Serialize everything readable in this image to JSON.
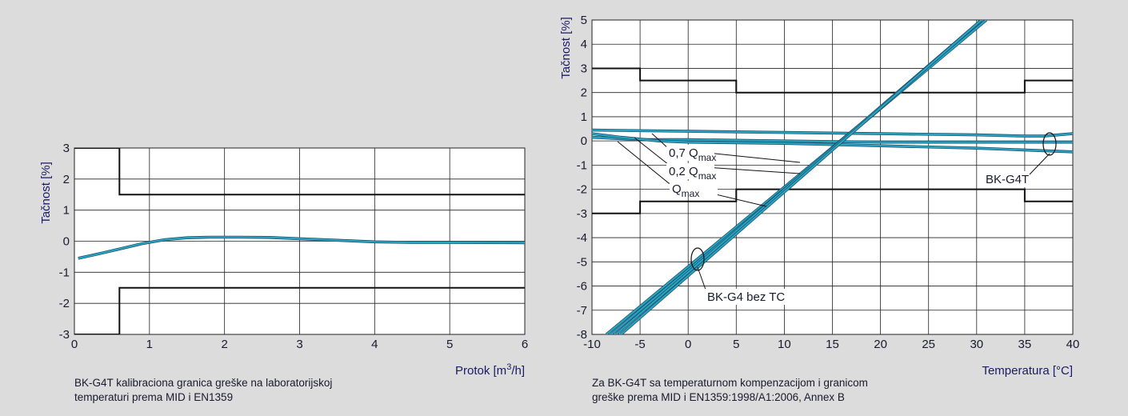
{
  "colors": {
    "background": "#dcdcdc",
    "plot_bg": "#ffffff",
    "curve": "#2aa3c0",
    "curve_dark": "#1a4f6a",
    "limit": "#111111",
    "grid": "#222222"
  },
  "chart_data": [
    {
      "type": "line",
      "ylabel": "Tačnost [%]",
      "xlabel_main": "Protok [m",
      "xlabel_sup": "3",
      "xlabel_end": "/h]",
      "xlim": [
        0,
        6
      ],
      "ylim": [
        -3,
        3
      ],
      "xticks": [
        "0",
        "1",
        "2",
        "3",
        "4",
        "5",
        "6"
      ],
      "yticks": [
        "3",
        "2",
        "1",
        "0",
        "-1",
        "-2",
        "-3"
      ],
      "grid": true,
      "caption_lines": [
        "BK-G4T kalibraciona granica greške na laboratorijskoj",
        "temperaturi prema MID i EN1359"
      ],
      "limits": {
        "upper": [
          [
            0,
            3
          ],
          [
            0.6,
            3
          ],
          [
            0.6,
            1.5
          ],
          [
            6,
            1.5
          ]
        ],
        "lower": [
          [
            0,
            -3
          ],
          [
            0.6,
            -3
          ],
          [
            0.6,
            -1.5
          ],
          [
            6,
            -1.5
          ]
        ]
      },
      "series": [
        {
          "values": [
            [
              0.05,
              -0.55
            ],
            [
              0.3,
              -0.42
            ],
            [
              0.6,
              -0.25
            ],
            [
              0.9,
              -0.08
            ],
            [
              1.2,
              0.05
            ],
            [
              1.5,
              0.11
            ],
            [
              1.8,
              0.13
            ],
            [
              2.2,
              0.13
            ],
            [
              2.6,
              0.12
            ],
            [
              3.0,
              0.08
            ],
            [
              3.5,
              0.03
            ],
            [
              4.0,
              -0.02
            ],
            [
              4.5,
              -0.04
            ],
            [
              5.0,
              -0.04
            ],
            [
              6.0,
              -0.05
            ]
          ]
        }
      ]
    },
    {
      "type": "line",
      "ylabel": "Tačnost [%]",
      "xlabel": "Temperatura [°C]",
      "xlim": [
        -10,
        40
      ],
      "ylim": [
        -8,
        5
      ],
      "xticks": [
        "-10",
        "-5",
        "0",
        "5",
        "10",
        "15",
        "20",
        "25",
        "30",
        "35",
        "40"
      ],
      "yticks": [
        "5",
        "4",
        "3",
        "2",
        "1",
        "0",
        "-1",
        "-2",
        "-3",
        "-4",
        "-5",
        "-6",
        "-7",
        "-8"
      ],
      "grid": true,
      "caption_lines": [
        "Za BK-G4T sa temperaturnom kompenzacijom i granicom",
        "greške prema MID i EN1359:1998/A1:2006, Annex B"
      ],
      "limits": {
        "upper": [
          [
            -10,
            3
          ],
          [
            -5,
            3
          ],
          [
            -5,
            2.5
          ],
          [
            5,
            2.5
          ],
          [
            5,
            2
          ],
          [
            35,
            2
          ],
          [
            35,
            2.5
          ],
          [
            40,
            2.5
          ]
        ],
        "lower": [
          [
            -10,
            -3
          ],
          [
            -5,
            -3
          ],
          [
            -5,
            -2.5
          ],
          [
            5,
            -2.5
          ],
          [
            5,
            -2
          ],
          [
            35,
            -2
          ],
          [
            35,
            -2.5
          ],
          [
            40,
            -2.5
          ]
        ]
      },
      "compensated_series": [
        {
          "values": [
            [
              -10,
              0.45
            ],
            [
              0,
              0.4
            ],
            [
              10,
              0.35
            ],
            [
              20,
              0.3
            ],
            [
              30,
              0.25
            ],
            [
              35,
              0.2
            ],
            [
              37,
              0.2
            ],
            [
              40,
              0.3
            ]
          ]
        },
        {
          "values": [
            [
              -10,
              0.15
            ],
            [
              -5,
              0.05
            ],
            [
              0,
              0.05
            ],
            [
              10,
              0.0
            ],
            [
              20,
              -0.05
            ],
            [
              30,
              -0.05
            ],
            [
              40,
              -0.05
            ]
          ]
        },
        {
          "values": [
            [
              -10,
              0.3
            ],
            [
              -7,
              0.15
            ],
            [
              -3,
              0.0
            ],
            [
              0,
              -0.05
            ],
            [
              10,
              -0.1
            ],
            [
              20,
              -0.2
            ],
            [
              30,
              -0.3
            ],
            [
              40,
              -0.45
            ]
          ]
        }
      ],
      "uncompensated_series": [
        {
          "values": [
            [
              -8.5,
              -8
            ],
            [
              31,
              5
            ]
          ]
        },
        {
          "values": [
            [
              -8.0,
              -8
            ],
            [
              31,
              5
            ]
          ]
        },
        {
          "values": [
            [
              -7.5,
              -8
            ],
            [
              30.5,
              5
            ]
          ]
        },
        {
          "values": [
            [
              -7.0,
              -8
            ],
            [
              30.5,
              5
            ]
          ]
        }
      ],
      "annotations": [
        {
          "text": "0,7 Q",
          "sub": "max"
        },
        {
          "text": "0,2 Q",
          "sub": "max"
        },
        {
          "text": "Q",
          "sub": "max"
        },
        {
          "text": "BK-G4T"
        },
        {
          "text": "BK-G4 bez TC"
        }
      ]
    }
  ]
}
